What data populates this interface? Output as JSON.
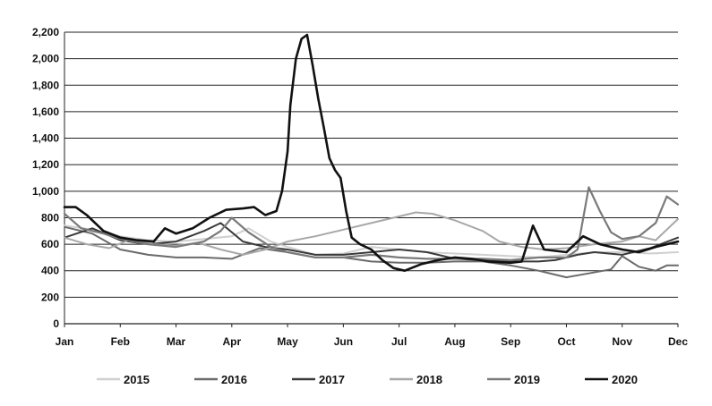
{
  "chart_data": {
    "type": "line",
    "title": "",
    "xlabel": "",
    "ylabel": "",
    "ylim": [
      0,
      2200
    ],
    "y_ticks": [
      "0",
      "200",
      "400",
      "600",
      "800",
      "1,000",
      "1,200",
      "1,400",
      "1,600",
      "1,800",
      "2,000",
      "2,200"
    ],
    "x_ticks": [
      "Jan",
      "Feb",
      "Mar",
      "Apr",
      "May",
      "Jun",
      "Jul",
      "Aug",
      "Sep",
      "Oct",
      "Nov",
      "Dec"
    ],
    "grid": "horizontal",
    "legend_position": "bottom",
    "series": [
      {
        "name": "2015",
        "color": "#cfcfcf",
        "width": 2,
        "points": [
          [
            0,
            740
          ],
          [
            0.5,
            710
          ],
          [
            1,
            660
          ],
          [
            1.5,
            630
          ],
          [
            2,
            620
          ],
          [
            2.5,
            640
          ],
          [
            3,
            660
          ],
          [
            3.3,
            720
          ],
          [
            3.7,
            620
          ],
          [
            4,
            580
          ],
          [
            4.5,
            520
          ],
          [
            5,
            530
          ],
          [
            5.5,
            580
          ],
          [
            6,
            560
          ],
          [
            6.5,
            540
          ],
          [
            7,
            530
          ],
          [
            7.5,
            520
          ],
          [
            8,
            510
          ],
          [
            8.5,
            500
          ],
          [
            9,
            520
          ],
          [
            9.5,
            540
          ],
          [
            10,
            540
          ],
          [
            10.5,
            530
          ],
          [
            11,
            540
          ]
        ]
      },
      {
        "name": "2016",
        "color": "#6a6a6a",
        "width": 2,
        "points": [
          [
            0,
            730
          ],
          [
            0.5,
            680
          ],
          [
            1,
            560
          ],
          [
            1.5,
            520
          ],
          [
            2,
            500
          ],
          [
            2.5,
            500
          ],
          [
            3,
            490
          ],
          [
            3.5,
            570
          ],
          [
            4,
            540
          ],
          [
            4.5,
            500
          ],
          [
            5,
            500
          ],
          [
            5.5,
            470
          ],
          [
            6,
            460
          ],
          [
            6.5,
            460
          ],
          [
            7,
            470
          ],
          [
            7.5,
            470
          ],
          [
            8,
            440
          ],
          [
            8.5,
            400
          ],
          [
            9,
            350
          ],
          [
            9.4,
            380
          ],
          [
            9.8,
            410
          ],
          [
            10,
            510
          ],
          [
            10.3,
            430
          ],
          [
            10.6,
            400
          ],
          [
            10.8,
            440
          ],
          [
            11,
            440
          ]
        ]
      },
      {
        "name": "2017",
        "color": "#3a3a3a",
        "width": 2,
        "points": [
          [
            0,
            650
          ],
          [
            0.5,
            720
          ],
          [
            1,
            630
          ],
          [
            1.5,
            600
          ],
          [
            2,
            620
          ],
          [
            2.5,
            700
          ],
          [
            2.8,
            760
          ],
          [
            3.2,
            620
          ],
          [
            3.6,
            580
          ],
          [
            4,
            560
          ],
          [
            4.5,
            520
          ],
          [
            5,
            520
          ],
          [
            5.5,
            540
          ],
          [
            6,
            560
          ],
          [
            6.5,
            540
          ],
          [
            7,
            490
          ],
          [
            7.5,
            480
          ],
          [
            8,
            470
          ],
          [
            8.5,
            470
          ],
          [
            8.8,
            480
          ],
          [
            9.2,
            520
          ],
          [
            9.5,
            540
          ],
          [
            10,
            520
          ],
          [
            10.5,
            570
          ],
          [
            11,
            650
          ]
        ]
      },
      {
        "name": "2018",
        "color": "#a8a8a8",
        "width": 2,
        "points": [
          [
            0,
            650
          ],
          [
            0.4,
            600
          ],
          [
            0.8,
            570
          ],
          [
            1.2,
            640
          ],
          [
            1.6,
            600
          ],
          [
            2,
            590
          ],
          [
            2.4,
            610
          ],
          [
            2.8,
            560
          ],
          [
            3.2,
            520
          ],
          [
            3.6,
            560
          ],
          [
            4,
            620
          ],
          [
            4.5,
            660
          ],
          [
            5,
            710
          ],
          [
            5.5,
            760
          ],
          [
            6,
            810
          ],
          [
            6.3,
            840
          ],
          [
            6.6,
            830
          ],
          [
            7,
            780
          ],
          [
            7.5,
            700
          ],
          [
            7.8,
            620
          ],
          [
            8.2,
            580
          ],
          [
            8.6,
            560
          ],
          [
            9,
            570
          ],
          [
            9.5,
            600
          ],
          [
            10,
            620
          ],
          [
            10.3,
            660
          ],
          [
            10.6,
            630
          ],
          [
            11,
            790
          ]
        ]
      },
      {
        "name": "2019",
        "color": "#7a7a7a",
        "width": 2.2,
        "points": [
          [
            0,
            830
          ],
          [
            0.3,
            720
          ],
          [
            0.7,
            680
          ],
          [
            1,
            640
          ],
          [
            1.5,
            600
          ],
          [
            2,
            580
          ],
          [
            2.5,
            620
          ],
          [
            2.8,
            700
          ],
          [
            3,
            800
          ],
          [
            3.3,
            690
          ],
          [
            3.7,
            580
          ],
          [
            4,
            540
          ],
          [
            4.5,
            500
          ],
          [
            5,
            500
          ],
          [
            5.5,
            520
          ],
          [
            6,
            500
          ],
          [
            6.5,
            490
          ],
          [
            7,
            490
          ],
          [
            7.5,
            490
          ],
          [
            8,
            480
          ],
          [
            8.5,
            500
          ],
          [
            9,
            500
          ],
          [
            9.2,
            560
          ],
          [
            9.4,
            1030
          ],
          [
            9.6,
            850
          ],
          [
            9.8,
            690
          ],
          [
            10,
            640
          ],
          [
            10.3,
            660
          ],
          [
            10.6,
            760
          ],
          [
            10.8,
            960
          ],
          [
            11,
            900
          ]
        ]
      },
      {
        "name": "2020",
        "color": "#111111",
        "width": 2.6,
        "points": [
          [
            0,
            880
          ],
          [
            0.2,
            880
          ],
          [
            0.4,
            820
          ],
          [
            0.7,
            700
          ],
          [
            1,
            650
          ],
          [
            1.3,
            630
          ],
          [
            1.6,
            620
          ],
          [
            1.8,
            720
          ],
          [
            2,
            680
          ],
          [
            2.3,
            720
          ],
          [
            2.6,
            800
          ],
          [
            2.9,
            860
          ],
          [
            3.2,
            870
          ],
          [
            3.4,
            880
          ],
          [
            3.6,
            820
          ],
          [
            3.8,
            850
          ],
          [
            3.9,
            1000
          ],
          [
            4.0,
            1300
          ],
          [
            4.05,
            1650
          ],
          [
            4.15,
            2000
          ],
          [
            4.25,
            2150
          ],
          [
            4.35,
            2180
          ],
          [
            4.45,
            1950
          ],
          [
            4.55,
            1700
          ],
          [
            4.65,
            1480
          ],
          [
            4.75,
            1250
          ],
          [
            4.85,
            1160
          ],
          [
            4.95,
            1100
          ],
          [
            5.05,
            850
          ],
          [
            5.15,
            650
          ],
          [
            5.3,
            600
          ],
          [
            5.5,
            560
          ],
          [
            5.7,
            480
          ],
          [
            5.9,
            420
          ],
          [
            6.1,
            400
          ],
          [
            6.4,
            450
          ],
          [
            6.7,
            480
          ],
          [
            7,
            500
          ],
          [
            7.3,
            490
          ],
          [
            7.6,
            470
          ],
          [
            8,
            460
          ],
          [
            8.2,
            470
          ],
          [
            8.4,
            740
          ],
          [
            8.6,
            560
          ],
          [
            9,
            540
          ],
          [
            9.3,
            660
          ],
          [
            9.6,
            600
          ],
          [
            10,
            560
          ],
          [
            10.3,
            540
          ],
          [
            10.6,
            580
          ],
          [
            11,
            620
          ]
        ]
      }
    ]
  }
}
